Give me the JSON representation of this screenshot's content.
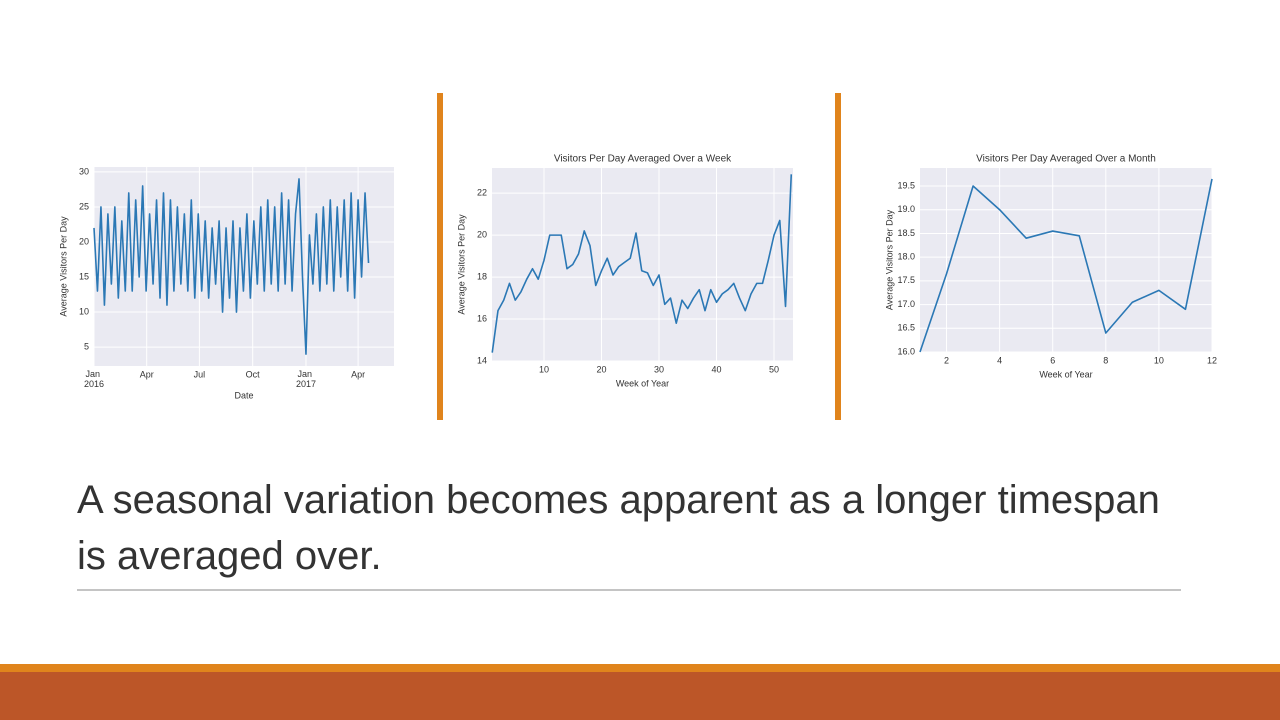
{
  "chart_data": [
    {
      "type": "line",
      "ylabel": "Average Visitors Per Day",
      "xlabel": "Date",
      "color": "#2b78b5",
      "grid": true,
      "x": [
        0,
        6,
        12,
        18,
        24,
        30,
        36,
        42,
        48,
        54,
        60,
        66,
        72,
        78,
        84,
        90,
        96,
        102,
        108,
        114,
        120,
        126,
        132,
        138,
        144,
        150,
        156,
        162,
        168,
        174,
        180,
        186,
        192,
        198,
        204,
        210,
        216,
        222,
        228,
        234,
        240,
        246,
        252,
        258,
        264,
        270,
        276,
        282,
        288,
        294,
        300,
        306,
        312,
        318,
        324,
        330,
        336,
        342,
        348,
        354,
        360,
        366,
        372,
        378,
        384,
        390,
        396,
        402,
        408,
        414,
        420,
        426,
        432,
        438,
        444,
        450,
        456,
        462,
        468,
        474
      ],
      "values": [
        22,
        13,
        25,
        11,
        24,
        14,
        25,
        12,
        23,
        13,
        27,
        13,
        26,
        15,
        28,
        13,
        24,
        14,
        26,
        12,
        27,
        11,
        26,
        13,
        25,
        14,
        24,
        13,
        26,
        12,
        24,
        13,
        23,
        12,
        22,
        14,
        23,
        10,
        22,
        12,
        23,
        10,
        22,
        13,
        24,
        12,
        23,
        14,
        25,
        13,
        26,
        14,
        25,
        13,
        27,
        14,
        26,
        13,
        24,
        29,
        15,
        4,
        21,
        14,
        24,
        13,
        25,
        14,
        26,
        13,
        25,
        15,
        26,
        13,
        27,
        12,
        26,
        15,
        27,
        17
      ],
      "xlim": [
        0,
        518
      ],
      "xticks": [
        {
          "value": 0,
          "label": "Jan 2016"
        },
        {
          "value": 91,
          "label": "Apr"
        },
        {
          "value": 182,
          "label": "Jul"
        },
        {
          "value": 274,
          "label": "Oct"
        },
        {
          "value": 366,
          "label": "Jan 2017"
        },
        {
          "value": 456,
          "label": "Apr"
        }
      ],
      "ylim": [
        2.3,
        30.7
      ],
      "yticks": [
        5,
        10,
        15,
        20,
        25,
        30
      ]
    },
    {
      "type": "line",
      "title": "Visitors Per Day Averaged Over a Week",
      "ylabel": "Average Visitors Per Day",
      "xlabel": "Week of Year",
      "color": "#2b78b5",
      "grid": true,
      "x": [
        1,
        2,
        3,
        4,
        5,
        6,
        7,
        8,
        9,
        10,
        11,
        12,
        13,
        14,
        15,
        16,
        17,
        18,
        19,
        20,
        21,
        22,
        23,
        24,
        25,
        26,
        27,
        28,
        29,
        30,
        31,
        32,
        33,
        34,
        35,
        36,
        37,
        38,
        39,
        40,
        41,
        42,
        43,
        44,
        45,
        46,
        47,
        48,
        49,
        50,
        51,
        52,
        53
      ],
      "values": [
        14.4,
        16.4,
        16.9,
        17.7,
        16.9,
        17.3,
        17.9,
        18.4,
        17.9,
        18.8,
        20.0,
        20.0,
        20.0,
        18.4,
        18.6,
        19.1,
        20.2,
        19.5,
        17.6,
        18.3,
        18.9,
        18.1,
        18.5,
        18.7,
        18.9,
        20.1,
        18.3,
        18.2,
        17.6,
        18.1,
        16.7,
        17.0,
        15.8,
        16.9,
        16.5,
        17.0,
        17.4,
        16.4,
        17.4,
        16.8,
        17.2,
        17.4,
        17.7,
        17.0,
        16.4,
        17.2,
        17.7,
        17.7,
        18.8,
        20.0,
        20.7,
        16.6,
        22.9
      ],
      "xlim": [
        0.96,
        53.3
      ],
      "xticks": [
        10,
        20,
        30,
        40,
        50
      ],
      "ylim": [
        14,
        23.2
      ],
      "yticks": [
        14,
        16,
        18,
        20,
        22
      ]
    },
    {
      "type": "line",
      "title": "Visitors Per Day Averaged Over a Month",
      "ylabel": "Average Visitors Per Day",
      "xlabel": "Week of Year",
      "color": "#2b78b5",
      "grid": true,
      "x": [
        1,
        2,
        3,
        4,
        5,
        6,
        7,
        8,
        9,
        10,
        11,
        12
      ],
      "values": [
        16.0,
        17.65,
        19.5,
        19.0,
        18.4,
        18.55,
        18.45,
        16.4,
        17.05,
        17.3,
        16.9,
        19.65
      ],
      "xlim": [
        1,
        12
      ],
      "xticks": [
        2,
        4,
        6,
        8,
        10,
        12
      ],
      "ylim": [
        16,
        19.88
      ],
      "yticks": [
        {
          "value": 16,
          "label": "16.0"
        },
        16.5,
        {
          "value": 17,
          "label": "17.0"
        },
        17.5,
        {
          "value": 18,
          "label": "18.0"
        },
        18.5,
        {
          "value": 19,
          "label": "19.0"
        },
        19.5
      ]
    }
  ],
  "caption": "A seasonal variation becomes apparent as a longer timespan is averaged over."
}
